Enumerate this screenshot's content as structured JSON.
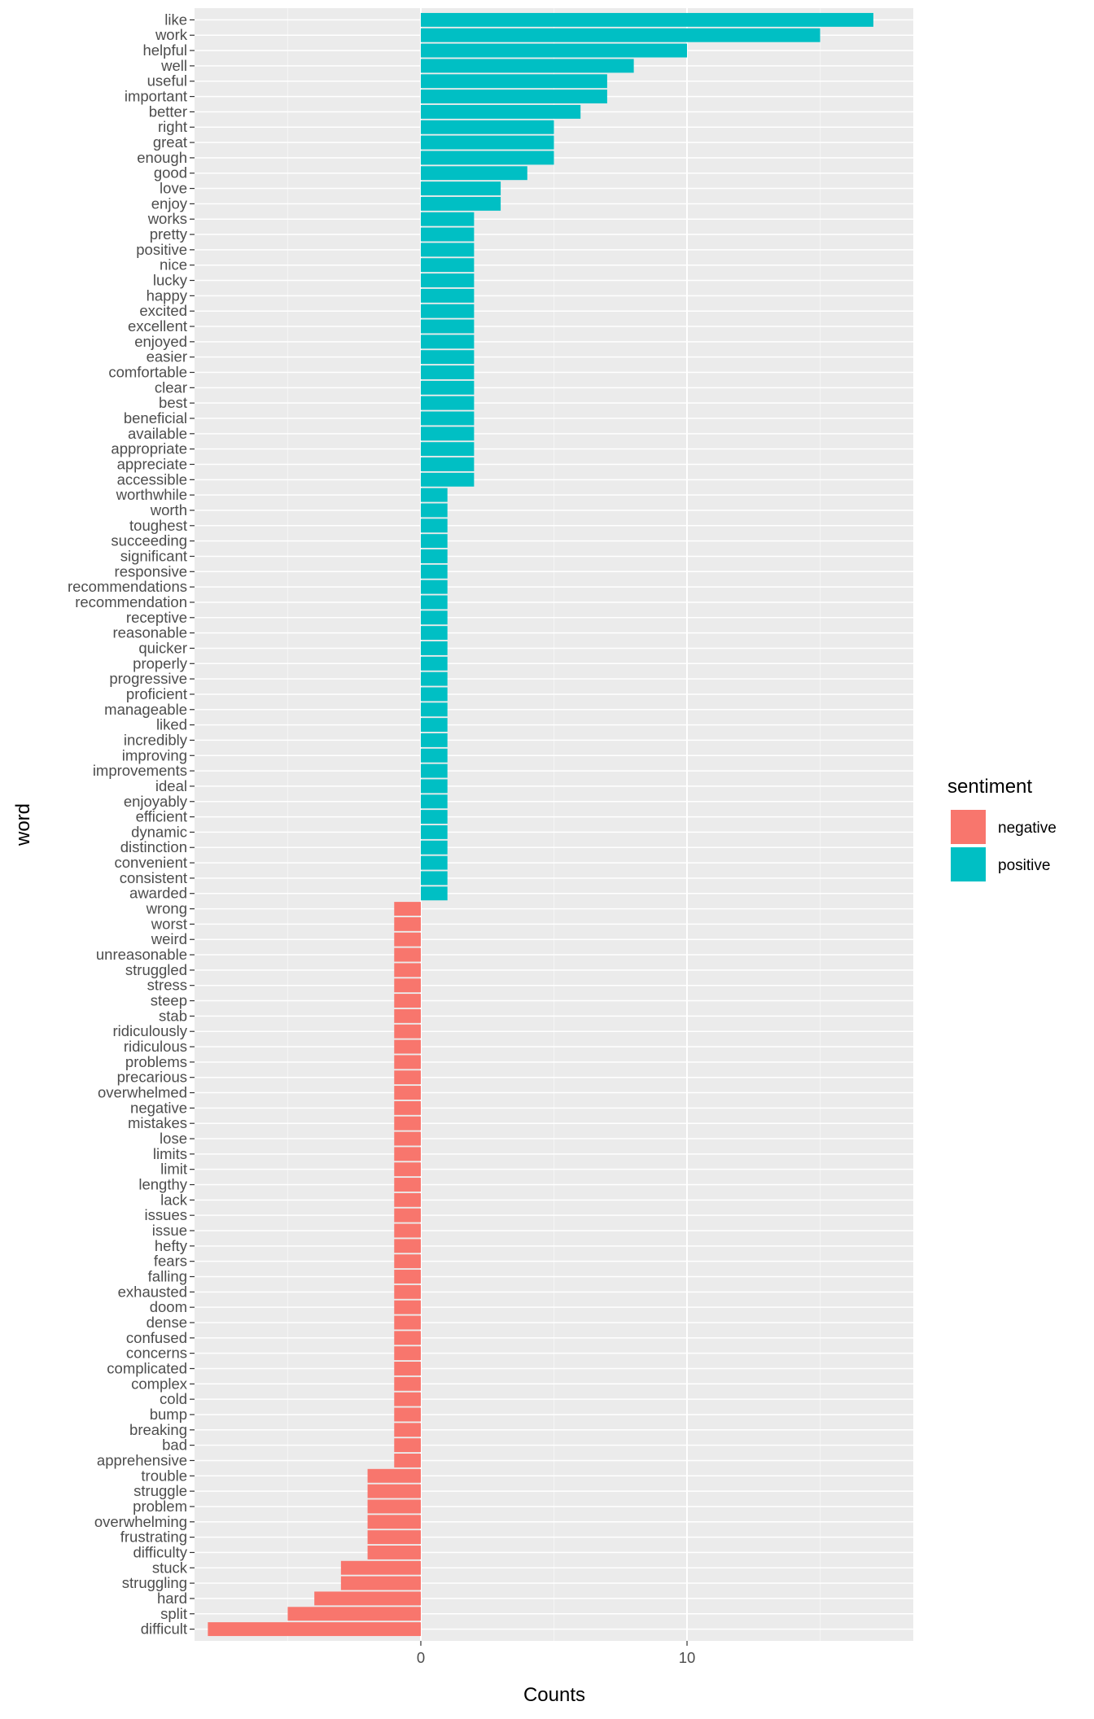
{
  "chart_data": {
    "type": "bar",
    "orientation": "horizontal",
    "xlabel": "Counts",
    "ylabel": "word",
    "xlim": [
      -8.5,
      18.5
    ],
    "x_ticks": [
      0,
      10
    ],
    "grid": true,
    "legend": {
      "title": "sentiment",
      "position": "right",
      "entries": [
        {
          "label": "negative",
          "color": "#F8766D"
        },
        {
          "label": "positive",
          "color": "#00BFC4"
        }
      ]
    },
    "categories": [
      "like",
      "work",
      "helpful",
      "well",
      "useful",
      "important",
      "better",
      "right",
      "great",
      "enough",
      "good",
      "love",
      "enjoy",
      "works",
      "pretty",
      "positive",
      "nice",
      "lucky",
      "happy",
      "excited",
      "excellent",
      "enjoyed",
      "easier",
      "comfortable",
      "clear",
      "best",
      "beneficial",
      "available",
      "appropriate",
      "appreciate",
      "accessible",
      "worthwhile",
      "worth",
      "toughest",
      "succeeding",
      "significant",
      "responsive",
      "recommendations",
      "recommendation",
      "receptive",
      "reasonable",
      "quicker",
      "properly",
      "progressive",
      "proficient",
      "manageable",
      "liked",
      "incredibly",
      "improving",
      "improvements",
      "ideal",
      "enjoyably",
      "efficient",
      "dynamic",
      "distinction",
      "convenient",
      "consistent",
      "awarded",
      "wrong",
      "worst",
      "weird",
      "unreasonable",
      "struggled",
      "stress",
      "steep",
      "stab",
      "ridiculously",
      "ridiculous",
      "problems",
      "precarious",
      "overwhelmed",
      "negative",
      "mistakes",
      "lose",
      "limits",
      "limit",
      "lengthy",
      "lack",
      "issues",
      "issue",
      "hefty",
      "fears",
      "falling",
      "exhausted",
      "doom",
      "dense",
      "confused",
      "concerns",
      "complicated",
      "complex",
      "cold",
      "bump",
      "breaking",
      "bad",
      "apprehensive",
      "trouble",
      "struggle",
      "problem",
      "overwhelming",
      "frustrating",
      "difficulty",
      "stuck",
      "struggling",
      "hard",
      "split",
      "difficult"
    ],
    "values": [
      17,
      15,
      10,
      8,
      7,
      7,
      6,
      5,
      5,
      5,
      4,
      3,
      3,
      2,
      2,
      2,
      2,
      2,
      2,
      2,
      2,
      2,
      2,
      2,
      2,
      2,
      2,
      2,
      2,
      2,
      2,
      1,
      1,
      1,
      1,
      1,
      1,
      1,
      1,
      1,
      1,
      1,
      1,
      1,
      1,
      1,
      1,
      1,
      1,
      1,
      1,
      1,
      1,
      1,
      1,
      1,
      1,
      1,
      -1,
      -1,
      -1,
      -1,
      -1,
      -1,
      -1,
      -1,
      -1,
      -1,
      -1,
      -1,
      -1,
      -1,
      -1,
      -1,
      -1,
      -1,
      -1,
      -1,
      -1,
      -1,
      -1,
      -1,
      -1,
      -1,
      -1,
      -1,
      -1,
      -1,
      -1,
      -1,
      -1,
      -1,
      -1,
      -1,
      -1,
      -2,
      -2,
      -2,
      -2,
      -2,
      -2,
      -3,
      -3,
      -4,
      -5,
      -8
    ]
  }
}
